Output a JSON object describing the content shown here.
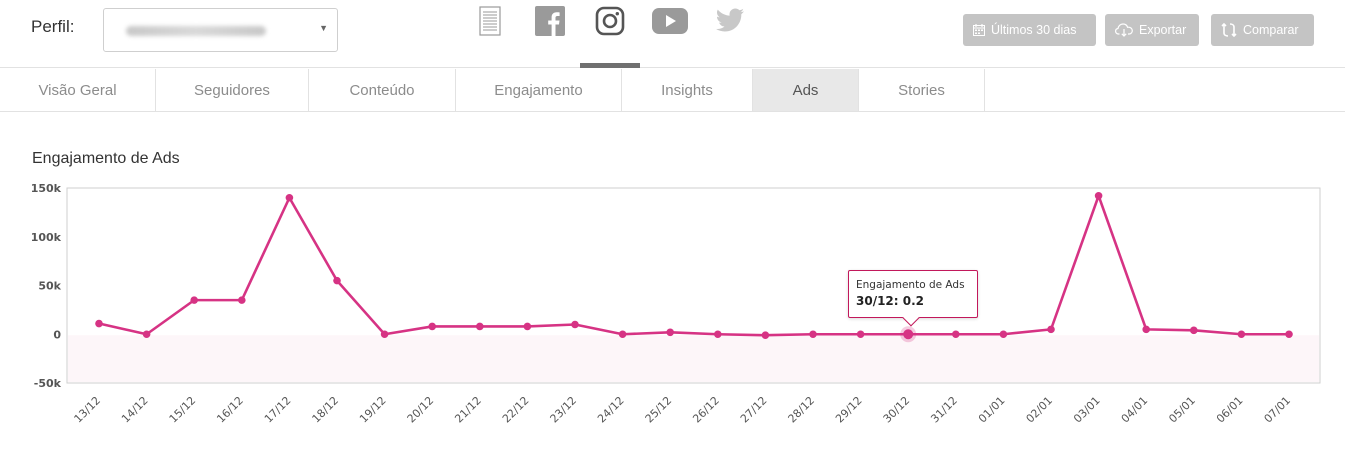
{
  "header": {
    "perfil_label": "Perfil:",
    "perfil_value": "",
    "networks": [
      {
        "name": "report",
        "icon": "document-icon"
      },
      {
        "name": "facebook",
        "icon": "facebook-icon"
      },
      {
        "name": "instagram",
        "icon": "instagram-icon",
        "active": true
      },
      {
        "name": "youtube",
        "icon": "youtube-icon"
      },
      {
        "name": "twitter",
        "icon": "twitter-icon"
      }
    ],
    "buttons": {
      "period": "Últimos 30 dias",
      "export": "Exportar",
      "compare": "Comparar"
    }
  },
  "tabs": [
    {
      "label": "Visão Geral"
    },
    {
      "label": "Seguidores"
    },
    {
      "label": "Conteúdo"
    },
    {
      "label": "Engajamento"
    },
    {
      "label": "Insights"
    },
    {
      "label": "Ads",
      "active": true
    },
    {
      "label": "Stories"
    }
  ],
  "section": {
    "title": "Engajamento de Ads"
  },
  "tooltip": {
    "title": "Engajamento de Ads",
    "value": "30/12: 0.2"
  },
  "colors": {
    "series": "#d63384",
    "button_bg": "#c4c4c4",
    "icon_gray": "#8f8f8f"
  },
  "chart_data": {
    "type": "line",
    "title": "Engajamento de Ads",
    "x": [
      "13/12",
      "14/12",
      "15/12",
      "16/12",
      "17/12",
      "18/12",
      "19/12",
      "20/12",
      "21/12",
      "22/12",
      "23/12",
      "24/12",
      "25/12",
      "26/12",
      "27/12",
      "28/12",
      "29/12",
      "30/12",
      "31/12",
      "01/01",
      "02/01",
      "03/01",
      "04/01",
      "05/01",
      "06/01",
      "07/01"
    ],
    "series": [
      {
        "values": [
          11000,
          0,
          35000,
          35000,
          140000,
          55000,
          0,
          8000,
          8000,
          8000,
          10000,
          0,
          2000,
          0,
          -1000,
          0,
          0,
          0.2,
          0,
          0,
          5000,
          142000,
          5000,
          4000,
          0,
          0
        ]
      }
    ],
    "ylim": [
      -50000,
      150000
    ],
    "yticks": [
      -50000,
      0,
      50000,
      100000,
      150000
    ],
    "ytick_labels": [
      "-50k",
      "0",
      "50k",
      "100k",
      "150k"
    ],
    "highlight_index": 17,
    "grid": false,
    "legend": "none"
  }
}
